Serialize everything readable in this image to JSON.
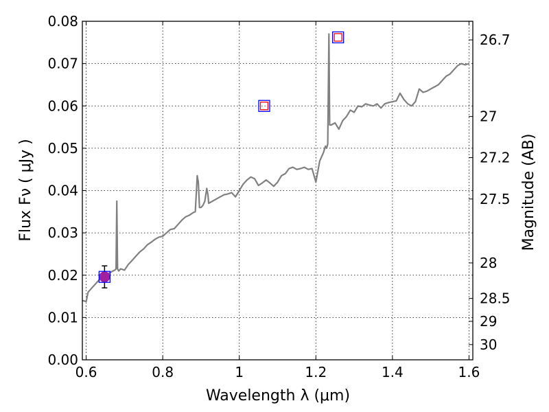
{
  "chart_data": {
    "type": "line",
    "xlabel": "Wavelength  λ (μm)",
    "ylabel": "Flux  Fν  ( μJy )",
    "y2label": "Magnitude (AB)",
    "xlim": [
      0.59,
      1.61
    ],
    "ylim": [
      0.0,
      0.08
    ],
    "grid": true,
    "x_ticks": [
      {
        "value": 0.6,
        "label": "0.6"
      },
      {
        "value": 0.8,
        "label": "0.8"
      },
      {
        "value": 1.0,
        "label": "1"
      },
      {
        "value": 1.2,
        "label": "1.2"
      },
      {
        "value": 1.4,
        "label": "1.4"
      },
      {
        "value": 1.6,
        "label": "1.6"
      }
    ],
    "y_ticks": [
      {
        "value": 0.0,
        "label": "0.00"
      },
      {
        "value": 0.01,
        "label": "0.01"
      },
      {
        "value": 0.02,
        "label": "0.02"
      },
      {
        "value": 0.03,
        "label": "0.03"
      },
      {
        "value": 0.04,
        "label": "0.04"
      },
      {
        "value": 0.05,
        "label": "0.05"
      },
      {
        "value": 0.06,
        "label": "0.06"
      },
      {
        "value": 0.07,
        "label": "0.07"
      },
      {
        "value": 0.08,
        "label": "0.08"
      }
    ],
    "y2_ticks": [
      {
        "flux": 0.0756,
        "label": "26.7"
      },
      {
        "flux": 0.0575,
        "label": "27"
      },
      {
        "flux": 0.0478,
        "label": "27.2"
      },
      {
        "flux": 0.038,
        "label": "27.5"
      },
      {
        "flux": 0.0229,
        "label": "28"
      },
      {
        "flux": 0.0145,
        "label": "28.5"
      },
      {
        "flux": 0.0091,
        "label": "29"
      },
      {
        "flux": 0.0036,
        "label": "30"
      }
    ],
    "series": [
      {
        "color": "#808080",
        "x": [
          0.59,
          0.6,
          0.605,
          0.61,
          0.62,
          0.63,
          0.64,
          0.65,
          0.66,
          0.67,
          0.675,
          0.678,
          0.68,
          0.682,
          0.685,
          0.69,
          0.7,
          0.71,
          0.72,
          0.73,
          0.74,
          0.75,
          0.76,
          0.77,
          0.78,
          0.79,
          0.8,
          0.81,
          0.82,
          0.83,
          0.84,
          0.85,
          0.86,
          0.87,
          0.88,
          0.885,
          0.89,
          0.893,
          0.896,
          0.9,
          0.905,
          0.91,
          0.915,
          0.918,
          0.92,
          0.93,
          0.94,
          0.95,
          0.96,
          0.97,
          0.98,
          0.99,
          1.0,
          1.01,
          1.02,
          1.03,
          1.04,
          1.05,
          1.06,
          1.07,
          1.08,
          1.09,
          1.1,
          1.11,
          1.12,
          1.13,
          1.14,
          1.15,
          1.16,
          1.17,
          1.18,
          1.19,
          1.2,
          1.21,
          1.22,
          1.225,
          1.228,
          1.231,
          1.234,
          1.236,
          1.24,
          1.25,
          1.26,
          1.27,
          1.28,
          1.29,
          1.3,
          1.31,
          1.32,
          1.33,
          1.34,
          1.35,
          1.36,
          1.37,
          1.38,
          1.39,
          1.4,
          1.41,
          1.42,
          1.43,
          1.44,
          1.45,
          1.46,
          1.47,
          1.48,
          1.49,
          1.5,
          1.51,
          1.52,
          1.53,
          1.54,
          1.55,
          1.56,
          1.57,
          1.58,
          1.59,
          1.6
        ],
        "y": [
          0.014,
          0.0138,
          0.016,
          0.0165,
          0.0175,
          0.0185,
          0.0195,
          0.02,
          0.0205,
          0.021,
          0.0212,
          0.0215,
          0.0375,
          0.0215,
          0.021,
          0.0215,
          0.0212,
          0.0225,
          0.0235,
          0.0245,
          0.0255,
          0.0262,
          0.0272,
          0.0278,
          0.0285,
          0.029,
          0.0292,
          0.03,
          0.0308,
          0.031,
          0.032,
          0.033,
          0.0338,
          0.0342,
          0.0348,
          0.035,
          0.0435,
          0.042,
          0.036,
          0.036,
          0.0365,
          0.0375,
          0.0405,
          0.039,
          0.037,
          0.0375,
          0.038,
          0.0385,
          0.039,
          0.0392,
          0.0395,
          0.0385,
          0.04,
          0.0415,
          0.0425,
          0.0432,
          0.0428,
          0.0412,
          0.0418,
          0.0425,
          0.0418,
          0.041,
          0.042,
          0.0435,
          0.044,
          0.0452,
          0.0455,
          0.045,
          0.0452,
          0.0455,
          0.045,
          0.0452,
          0.042,
          0.047,
          0.049,
          0.0505,
          0.05,
          0.051,
          0.077,
          0.0555,
          0.0555,
          0.056,
          0.0545,
          0.0565,
          0.0575,
          0.059,
          0.0585,
          0.06,
          0.0598,
          0.0605,
          0.0602,
          0.06,
          0.0605,
          0.0595,
          0.0605,
          0.0608,
          0.061,
          0.0612,
          0.063,
          0.0615,
          0.0605,
          0.06,
          0.061,
          0.064,
          0.0632,
          0.0635,
          0.064,
          0.0645,
          0.065,
          0.066,
          0.067,
          0.0675,
          0.0685,
          0.0695,
          0.07,
          0.0697,
          0.07
        ]
      }
    ],
    "markers": [
      {
        "kind": "circle",
        "x": 0.648,
        "y": 0.0196,
        "fill": "#a020a0",
        "yerr": [
          0.017,
          0.0222
        ],
        "errcolor": "#000000"
      },
      {
        "kind": "square",
        "x": 0.648,
        "y": 0.0196,
        "edge": "#0000ff"
      },
      {
        "kind": "square",
        "x": 1.065,
        "y": 0.06,
        "edge": "#0000ff"
      },
      {
        "kind": "square",
        "x": 1.065,
        "y": 0.06,
        "edge": "#ff0000",
        "small": true
      },
      {
        "kind": "square",
        "x": 1.258,
        "y": 0.0762,
        "edge": "#0000ff"
      },
      {
        "kind": "square",
        "x": 1.258,
        "y": 0.0762,
        "edge": "#ff0000",
        "small": true
      }
    ]
  }
}
